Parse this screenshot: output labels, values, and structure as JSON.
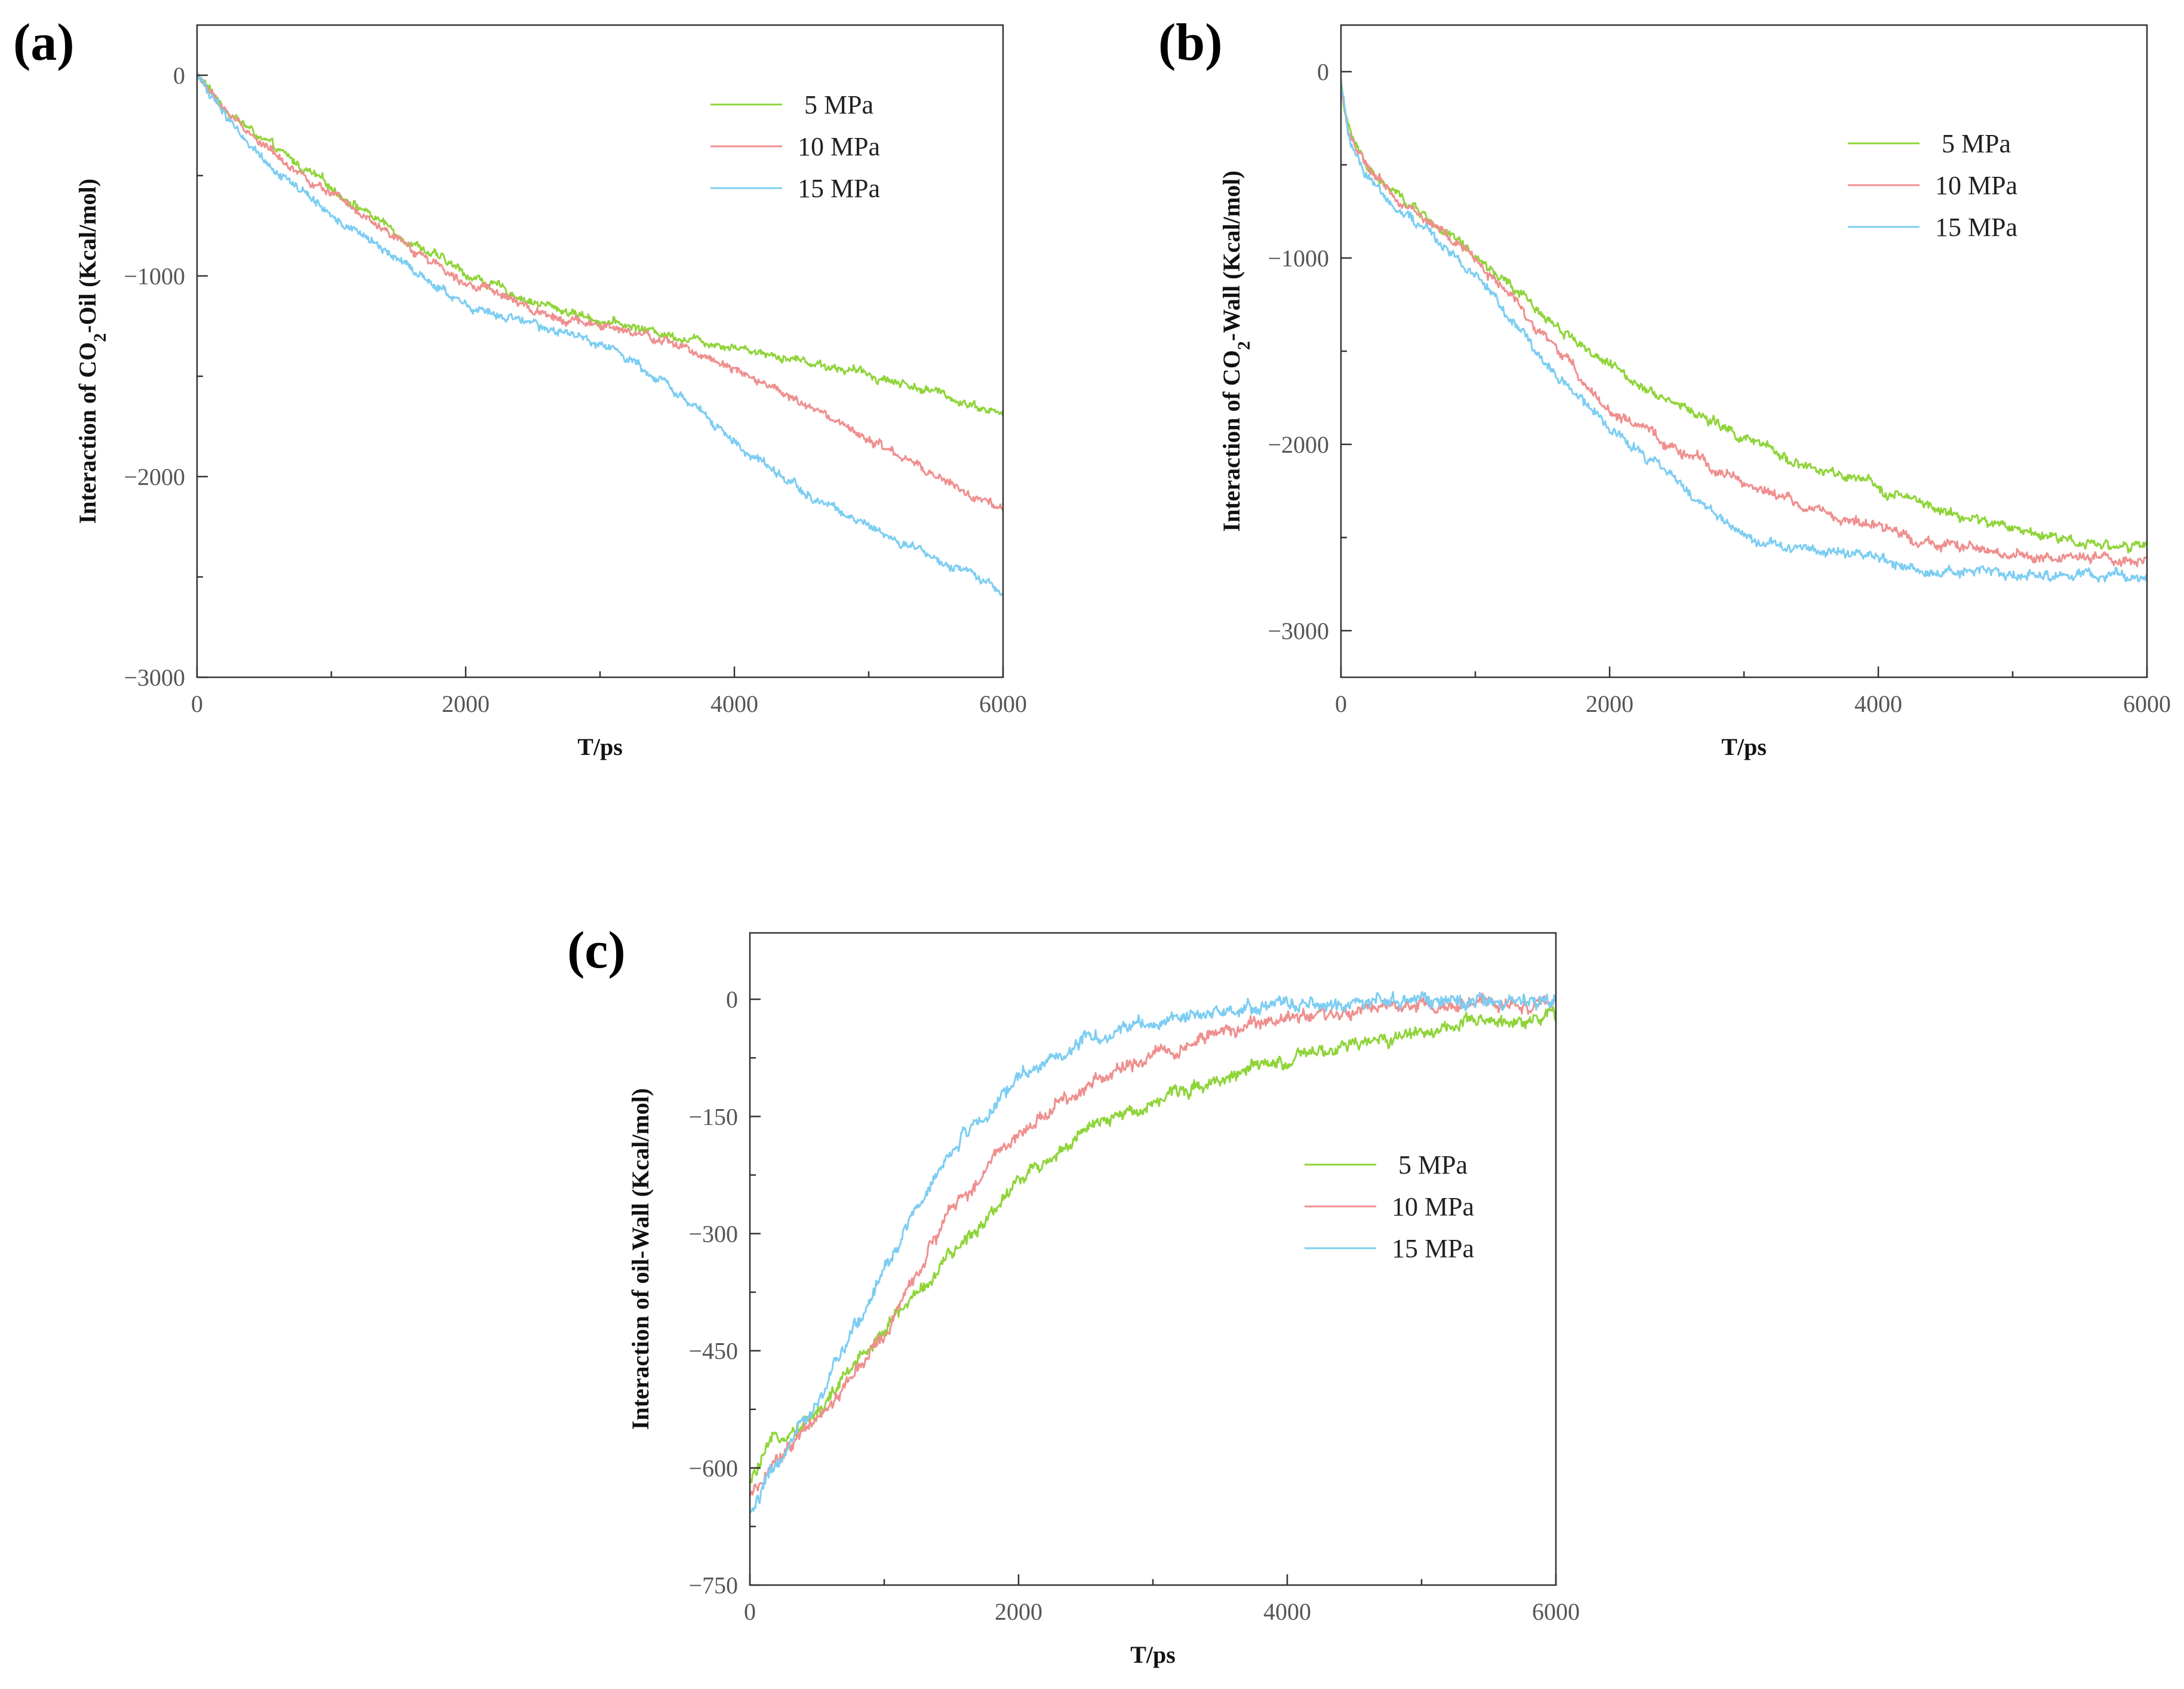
{
  "colors": {
    "s5": "#8fd43a",
    "s10": "#ef8f8f",
    "s15": "#7ccdf2",
    "axis": "#333333"
  },
  "chart_data": [
    {
      "id": "a",
      "type": "line",
      "panel_label": "(a)",
      "xlabel": "T/ps",
      "ylabel_parts": [
        "Interaction of CO",
        "2",
        "-Oil (Kcal/mol)"
      ],
      "xlim": [
        0,
        6000
      ],
      "ylim": [
        -3000,
        250
      ],
      "xticks": [
        0,
        2000,
        4000,
        6000
      ],
      "xtick_labels": [
        "0",
        "2000",
        "4000",
        "6000"
      ],
      "yticks": [
        0,
        -1000,
        -2000,
        -3000
      ],
      "ytick_labels": [
        "0",
        "−1000",
        "−2000",
        "−3000"
      ],
      "legend_position": "top-right",
      "noise": 22,
      "series": [
        {
          "name": "5 MPa",
          "color_key": "s5",
          "points": [
            [
              0,
              0
            ],
            [
              200,
              -160
            ],
            [
              500,
              -330
            ],
            [
              1000,
              -560
            ],
            [
              1500,
              -790
            ],
            [
              2000,
              -990
            ],
            [
              2500,
              -1130
            ],
            [
              3000,
              -1220
            ],
            [
              3500,
              -1290
            ],
            [
              4000,
              -1350
            ],
            [
              4500,
              -1420
            ],
            [
              5000,
              -1490
            ],
            [
              5500,
              -1580
            ],
            [
              6000,
              -1690
            ]
          ]
        },
        {
          "name": "10 MPa",
          "color_key": "s10",
          "points": [
            [
              0,
              0
            ],
            [
              200,
              -170
            ],
            [
              500,
              -350
            ],
            [
              1000,
              -600
            ],
            [
              1500,
              -830
            ],
            [
              2000,
              -1020
            ],
            [
              2500,
              -1170
            ],
            [
              3000,
              -1250
            ],
            [
              3500,
              -1330
            ],
            [
              4000,
              -1450
            ],
            [
              4500,
              -1640
            ],
            [
              5000,
              -1820
            ],
            [
              5500,
              -2000
            ],
            [
              6000,
              -2180
            ]
          ]
        },
        {
          "name": "15 MPa",
          "color_key": "s15",
          "points": [
            [
              0,
              0
            ],
            [
              200,
              -190
            ],
            [
              500,
              -420
            ],
            [
              1000,
              -700
            ],
            [
              1500,
              -920
            ],
            [
              2000,
              -1150
            ],
            [
              2500,
              -1250
            ],
            [
              3000,
              -1330
            ],
            [
              3500,
              -1530
            ],
            [
              4000,
              -1830
            ],
            [
              4500,
              -2070
            ],
            [
              5000,
              -2250
            ],
            [
              5500,
              -2420
            ],
            [
              6000,
              -2570
            ]
          ]
        }
      ]
    },
    {
      "id": "b",
      "type": "line",
      "panel_label": "(b)",
      "xlabel": "T/ps",
      "ylabel_parts": [
        "Interaction of CO",
        "2",
        "-Wall (Kcal/mol)"
      ],
      "xlim": [
        0,
        6000
      ],
      "ylim": [
        -3250,
        250
      ],
      "xticks": [
        0,
        2000,
        4000,
        6000
      ],
      "xtick_labels": [
        "0",
        "2000",
        "4000",
        "6000"
      ],
      "yticks": [
        0,
        -1000,
        -2000,
        -3000
      ],
      "ytick_labels": [
        "0",
        "−1000",
        "−2000",
        "−3000"
      ],
      "legend_position": "top-right",
      "noise": 28,
      "series": [
        {
          "name": "5 MPa",
          "color_key": "s5",
          "points": [
            [
              0,
              -60
            ],
            [
              50,
              -300
            ],
            [
              150,
              -460
            ],
            [
              300,
              -600
            ],
            [
              600,
              -760
            ],
            [
              1000,
              -1000
            ],
            [
              1500,
              -1300
            ],
            [
              2000,
              -1580
            ],
            [
              2500,
              -1780
            ],
            [
              3000,
              -1970
            ],
            [
              3500,
              -2130
            ],
            [
              4000,
              -2230
            ],
            [
              4500,
              -2370
            ],
            [
              5000,
              -2450
            ],
            [
              5500,
              -2520
            ],
            [
              6000,
              -2560
            ]
          ]
        },
        {
          "name": "10 MPa",
          "color_key": "s10",
          "points": [
            [
              0,
              -60
            ],
            [
              50,
              -300
            ],
            [
              150,
              -470
            ],
            [
              300,
              -610
            ],
            [
              600,
              -780
            ],
            [
              1000,
              -1000
            ],
            [
              1500,
              -1400
            ],
            [
              2000,
              -1820
            ],
            [
              2500,
              -2030
            ],
            [
              3000,
              -2200
            ],
            [
              3500,
              -2350
            ],
            [
              4000,
              -2450
            ],
            [
              4500,
              -2540
            ],
            [
              5000,
              -2600
            ],
            [
              5500,
              -2610
            ],
            [
              6000,
              -2640
            ]
          ]
        },
        {
          "name": "15 MPa",
          "color_key": "s15",
          "points": [
            [
              0,
              -60
            ],
            [
              50,
              -320
            ],
            [
              150,
              -500
            ],
            [
              300,
              -650
            ],
            [
              600,
              -830
            ],
            [
              1000,
              -1080
            ],
            [
              1500,
              -1550
            ],
            [
              2000,
              -1920
            ],
            [
              2500,
              -2200
            ],
            [
              3000,
              -2500
            ],
            [
              3500,
              -2560
            ],
            [
              4000,
              -2620
            ],
            [
              4500,
              -2680
            ],
            [
              5000,
              -2700
            ],
            [
              5500,
              -2700
            ],
            [
              6000,
              -2720
            ]
          ]
        }
      ]
    },
    {
      "id": "c",
      "type": "line",
      "panel_label": "(c)",
      "xlabel": "T/ps",
      "ylabel_parts": [
        "Interaction of oil-Wall (Kcal/mol)"
      ],
      "xlim": [
        0,
        6000
      ],
      "ylim": [
        -750,
        85
      ],
      "xticks": [
        0,
        2000,
        4000,
        6000
      ],
      "xtick_labels": [
        "0",
        "2000",
        "4000",
        "6000"
      ],
      "yticks": [
        0,
        -150,
        -300,
        -450,
        -600,
        -750
      ],
      "ytick_labels": [
        "0",
        "−150",
        "−300",
        "−450",
        "−600",
        "−750"
      ],
      "legend_position": "center-right",
      "noise": 9,
      "series": [
        {
          "name": "5 MPa",
          "color_key": "s5",
          "points": [
            [
              0,
              -620
            ],
            [
              200,
              -560
            ],
            [
              500,
              -530
            ],
            [
              1000,
              -420
            ],
            [
              1500,
              -330
            ],
            [
              2000,
              -230
            ],
            [
              2500,
              -170
            ],
            [
              3000,
              -130
            ],
            [
              3500,
              -100
            ],
            [
              4000,
              -80
            ],
            [
              4500,
              -60
            ],
            [
              5000,
              -40
            ],
            [
              5500,
              -30
            ],
            [
              6000,
              -20
            ]
          ]
        },
        {
          "name": "10 MPa",
          "color_key": "s10",
          "points": [
            [
              0,
              -640
            ],
            [
              200,
              -590
            ],
            [
              500,
              -540
            ],
            [
              1000,
              -430
            ],
            [
              1500,
              -270
            ],
            [
              2000,
              -170
            ],
            [
              2500,
              -110
            ],
            [
              3000,
              -70
            ],
            [
              3500,
              -45
            ],
            [
              4000,
              -25
            ],
            [
              4500,
              -15
            ],
            [
              5000,
              -10
            ],
            [
              5500,
              -8
            ],
            [
              6000,
              -5
            ]
          ]
        },
        {
          "name": "15 MPa",
          "color_key": "s15",
          "points": [
            [
              0,
              -660
            ],
            [
              200,
              -590
            ],
            [
              500,
              -520
            ],
            [
              1000,
              -340
            ],
            [
              1500,
              -190
            ],
            [
              2000,
              -100
            ],
            [
              2500,
              -50
            ],
            [
              3000,
              -30
            ],
            [
              3500,
              -15
            ],
            [
              4000,
              -8
            ],
            [
              4500,
              -5
            ],
            [
              5000,
              -3
            ],
            [
              5500,
              -2
            ],
            [
              6000,
              -2
            ]
          ]
        }
      ]
    }
  ]
}
